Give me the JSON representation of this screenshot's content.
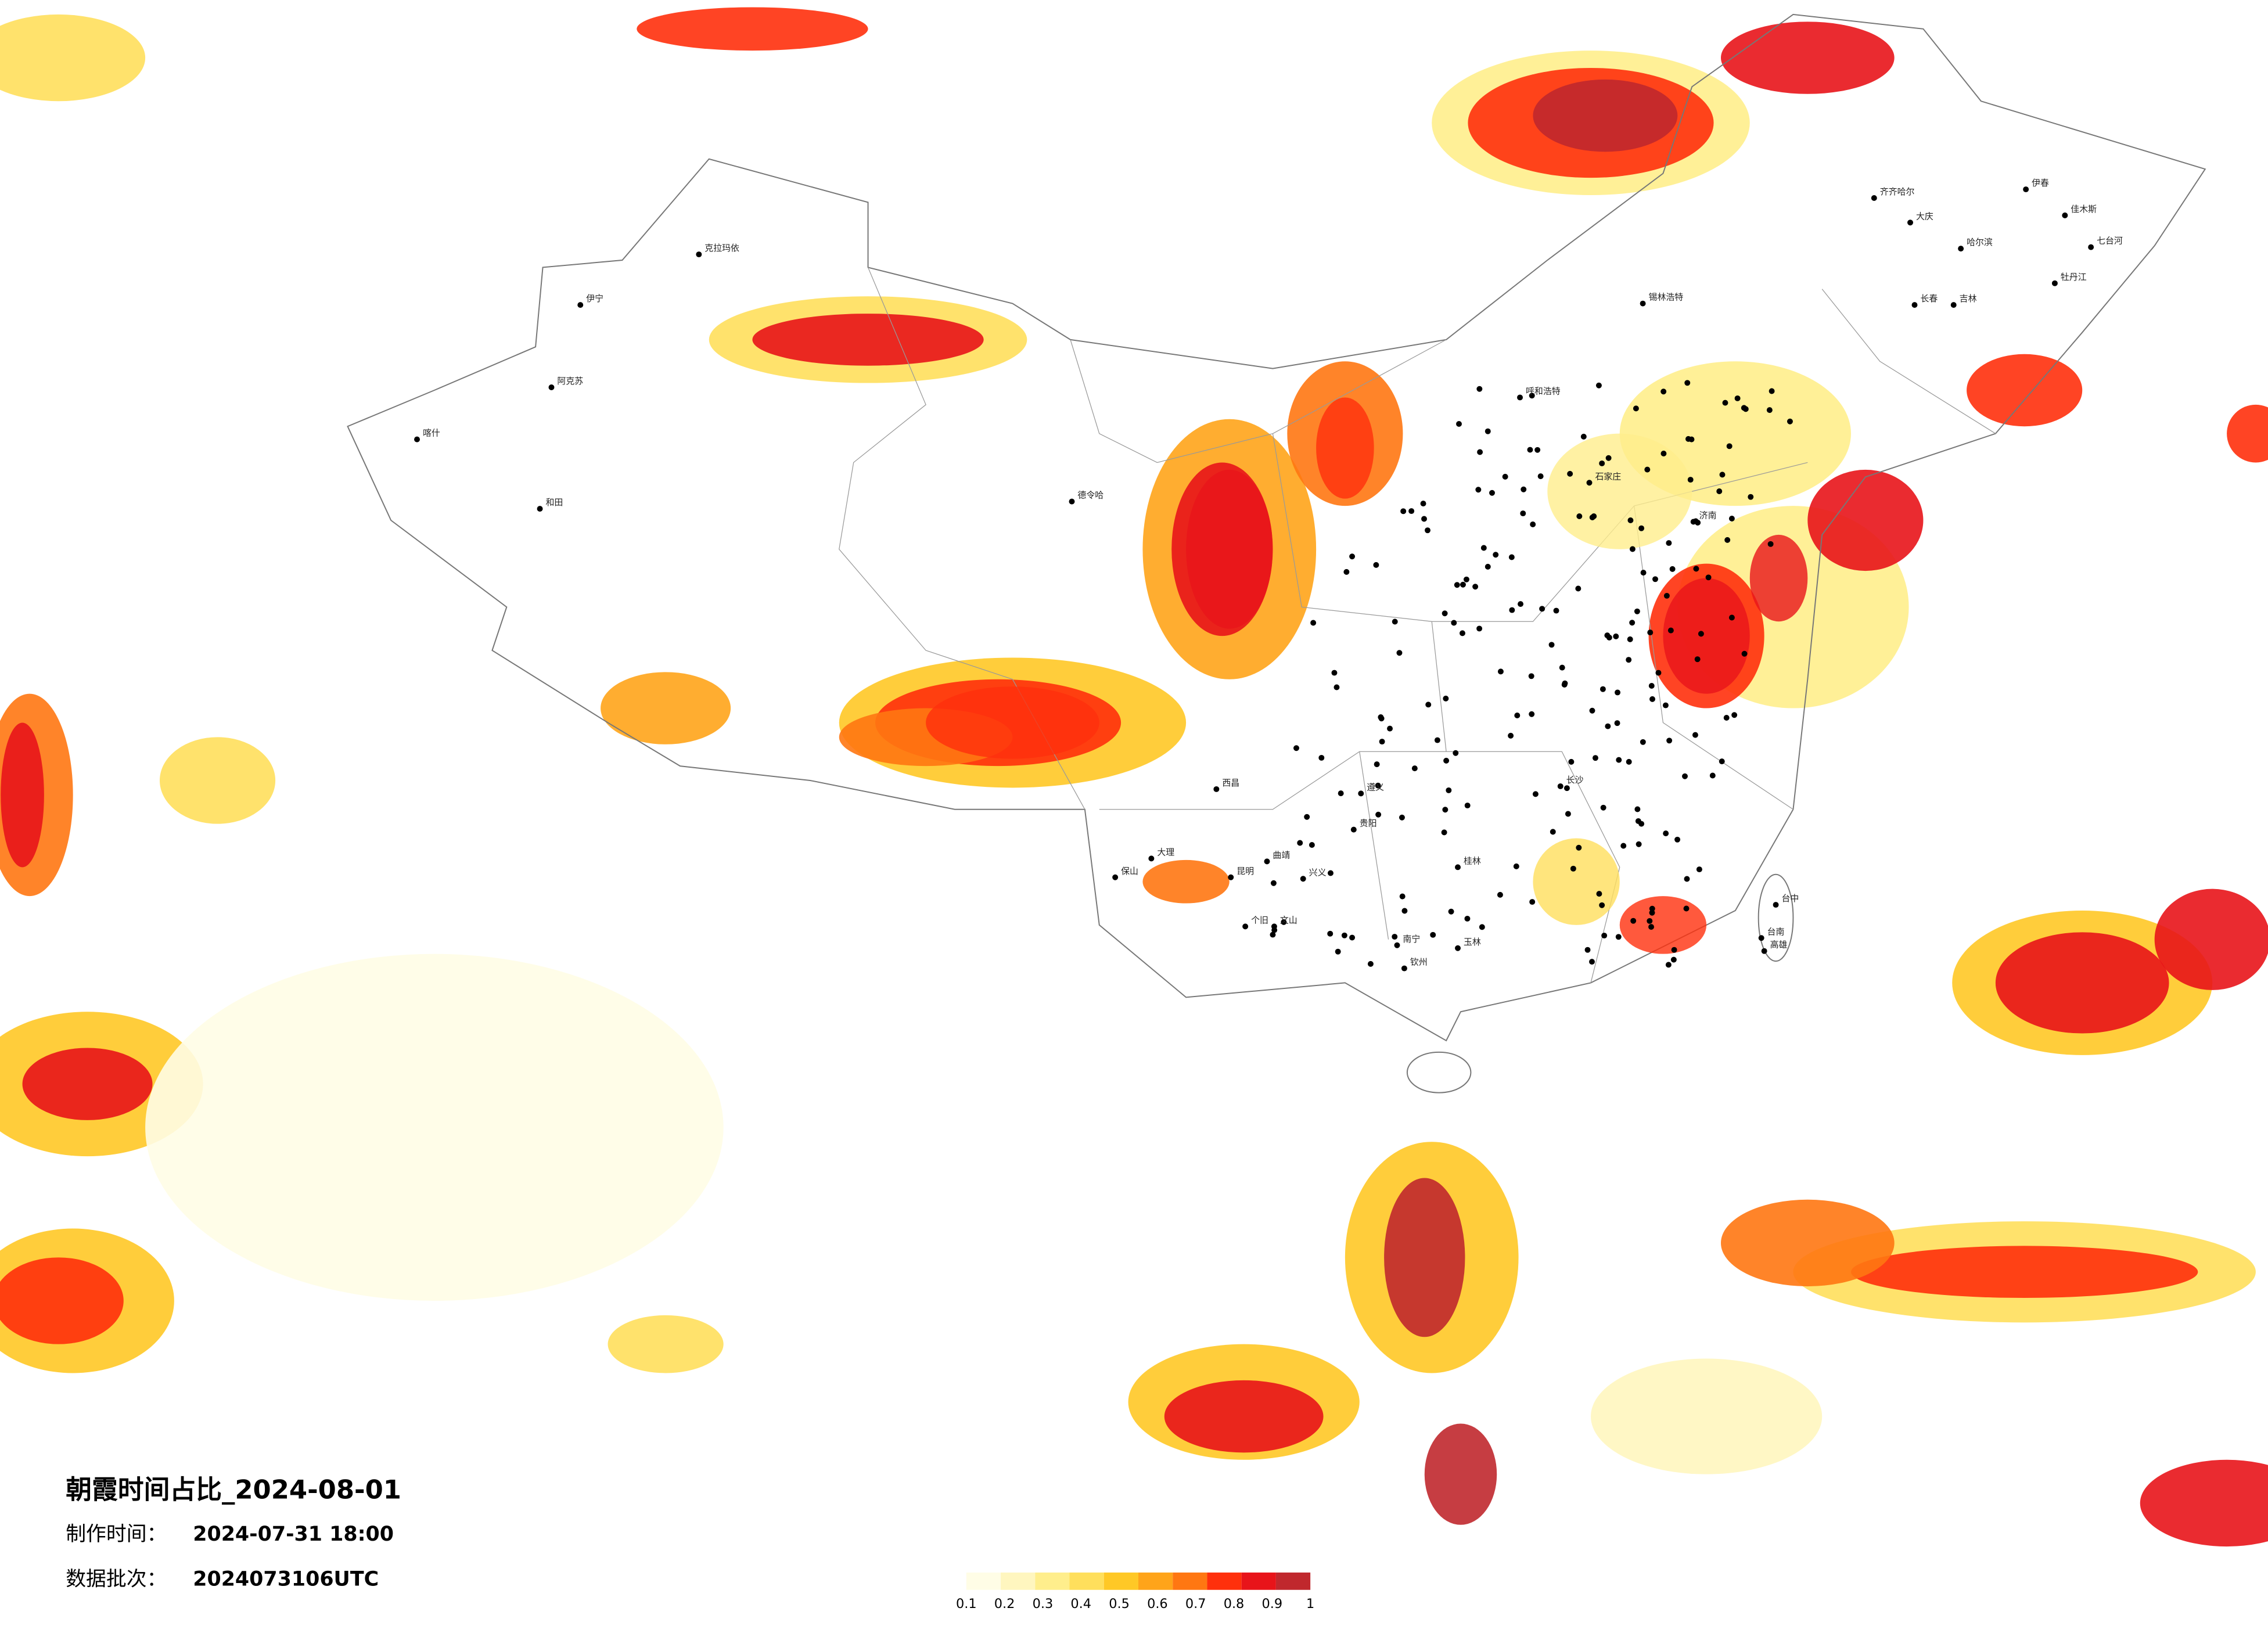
{
  "title": "朝霞时间占比_2024-08-01",
  "produced": {
    "label": "制作时间：",
    "value": "2024-07-31 18:00"
  },
  "batch": {
    "label": "数据批次：",
    "value": "2024073106UTC"
  },
  "colorbar": {
    "colors": [
      "#fffde6",
      "#fff6bf",
      "#ffee8c",
      "#ffdf5c",
      "#ffc826",
      "#ffa41a",
      "#ff7712",
      "#ff300c",
      "#e8141a",
      "#c0282d"
    ],
    "ticks": [
      0.1,
      0.2,
      0.3,
      0.4,
      0.5,
      0.6,
      0.7,
      0.8,
      0.9,
      1
    ]
  },
  "cities": [
    "克拉玛依",
    "伊宁",
    "阿克苏",
    "喀什",
    "和田",
    "德令哈",
    "锡林浩特",
    "齐齐哈尔",
    "大庆",
    "哈尔滨",
    "长春",
    "吉林",
    "伊春",
    "佳木斯",
    "七台河",
    "牡丹江",
    "呼和浩特",
    "石家庄",
    "济南",
    "长沙",
    "贵阳",
    "南宁",
    "昆明",
    "大理",
    "文山",
    "个旧",
    "台中",
    "台南",
    "高雄",
    "钦州",
    "玉林",
    "桂林",
    "保山",
    "曲靖",
    "兴义",
    "西昌",
    "遵义"
  ]
}
